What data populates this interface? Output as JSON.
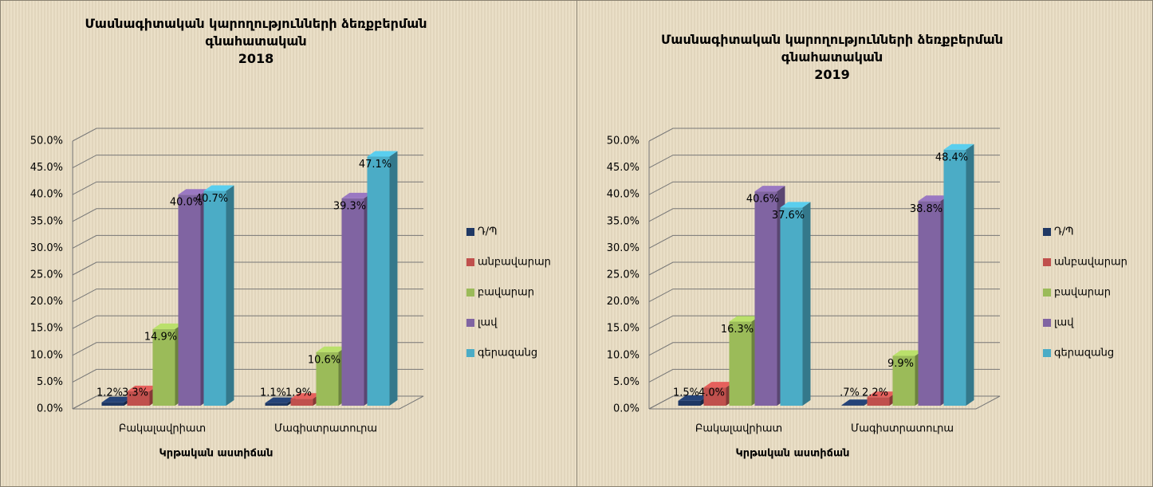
{
  "chart_data": [
    {
      "type": "bar3d",
      "title": "Մասնագիտական կարողությունների ձեռքբերման գնահատական",
      "subtitle": "2018",
      "x_label": "Կրթական աստիճան",
      "categories": [
        "Բակալավրիատ",
        "Մագիստրատուրա"
      ],
      "series": [
        {
          "name": "Դ/Պ",
          "color": "#1f3864",
          "values": [
            1.2,
            1.1
          ],
          "value_labels": [
            "1.2%",
            "1.1%"
          ]
        },
        {
          "name": "անբավարար",
          "color": "#c0504d",
          "values": [
            3.3,
            1.9
          ],
          "value_labels": [
            "3.3%",
            "1.9%"
          ]
        },
        {
          "name": "բավարար",
          "color": "#9bbb59",
          "values": [
            14.9,
            10.6
          ],
          "value_labels": [
            "14.9%",
            "10.6%"
          ]
        },
        {
          "name": "լավ",
          "color": "#8064a2",
          "values": [
            40.0,
            39.3
          ],
          "value_labels": [
            "40.0%",
            "39.3%"
          ]
        },
        {
          "name": "գերազանց",
          "color": "#4bacc6",
          "values": [
            40.7,
            47.1
          ],
          "value_labels": [
            "40.7%",
            "47.1%"
          ]
        }
      ],
      "ylim": [
        0,
        50
      ],
      "yticks": [
        {
          "value": 0,
          "label": "0.0%"
        },
        {
          "value": 5,
          "label": "5.0%"
        },
        {
          "value": 10,
          "label": "10.0%"
        },
        {
          "value": 15,
          "label": "15.0%"
        },
        {
          "value": 20,
          "label": "20.0%"
        },
        {
          "value": 25,
          "label": "25.0%"
        },
        {
          "value": 30,
          "label": "30.0%"
        },
        {
          "value": 35,
          "label": "35.0%"
        },
        {
          "value": 40,
          "label": "40.0%"
        },
        {
          "value": 45,
          "label": "45.0%"
        },
        {
          "value": 50,
          "label": "50.0%"
        }
      ],
      "grid": true,
      "legend": "right"
    },
    {
      "type": "bar3d",
      "title": "Մասնագիտական կարողությունների ձեռքբերման գնահատական",
      "subtitle": "2019",
      "x_label": "Կրթական աստիճան",
      "categories": [
        "Բակալավրիատ",
        "Մագիստրատուրա"
      ],
      "series": [
        {
          "name": "Դ/Պ",
          "color": "#1f3864",
          "values": [
            1.5,
            0.7
          ],
          "value_labels": [
            "1.5%",
            ".7%"
          ]
        },
        {
          "name": "անբավարար",
          "color": "#c0504d",
          "values": [
            4.0,
            2.2
          ],
          "value_labels": [
            "4.0%",
            "2.2%"
          ]
        },
        {
          "name": "բավարար",
          "color": "#9bbb59",
          "values": [
            16.3,
            9.9
          ],
          "value_labels": [
            "16.3%",
            "9.9%"
          ]
        },
        {
          "name": "լավ",
          "color": "#8064a2",
          "values": [
            40.6,
            38.8
          ],
          "value_labels": [
            "40.6%",
            "38.8%"
          ]
        },
        {
          "name": "գերազանց",
          "color": "#4bacc6",
          "values": [
            37.6,
            48.4
          ],
          "value_labels": [
            "37.6%",
            "48.4%"
          ]
        }
      ],
      "ylim": [
        0,
        50
      ],
      "yticks": [
        {
          "value": 0,
          "label": "0.0%"
        },
        {
          "value": 5,
          "label": "5.0%"
        },
        {
          "value": 10,
          "label": "10.0%"
        },
        {
          "value": 15,
          "label": "15.0%"
        },
        {
          "value": 20,
          "label": "20.0%"
        },
        {
          "value": 25,
          "label": "25.0%"
        },
        {
          "value": 30,
          "label": "30.0%"
        },
        {
          "value": 35,
          "label": "35.0%"
        },
        {
          "value": 40,
          "label": "40.0%"
        },
        {
          "value": 45,
          "label": "45.0%"
        },
        {
          "value": 50,
          "label": "50.0%"
        }
      ],
      "grid": true,
      "legend": "right"
    }
  ]
}
